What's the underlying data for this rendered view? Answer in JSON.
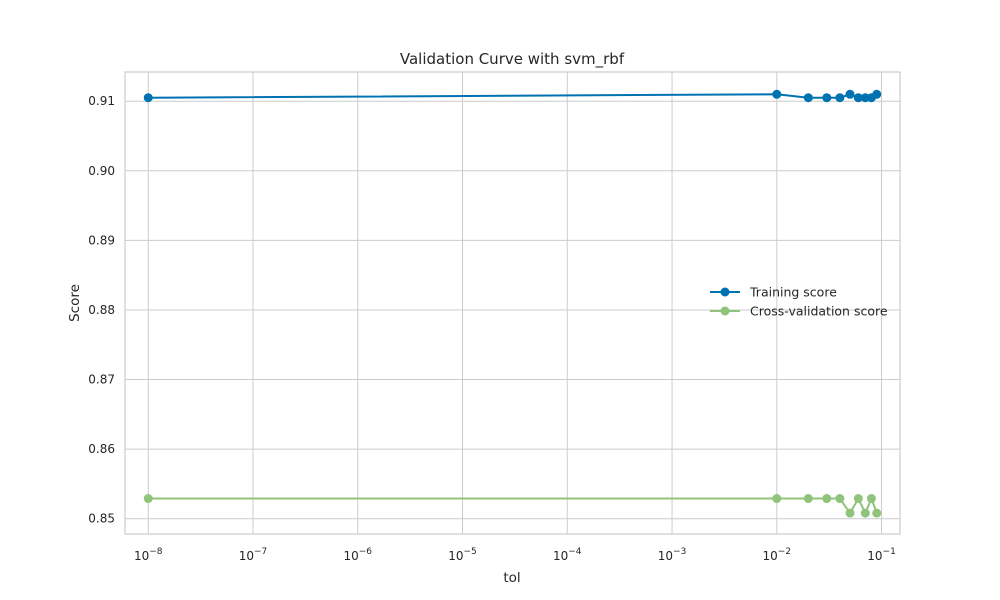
{
  "chart_data": {
    "type": "line",
    "title": "Validation Curve with svm_rbf",
    "xlabel": "tol",
    "ylabel": "Score",
    "xscale": "log",
    "xlim": [
      6e-09,
      0.15
    ],
    "ylim": [
      0.8478,
      0.9142
    ],
    "grid": true,
    "legend_position": "center-right",
    "x": [
      1e-08,
      0.01,
      0.02,
      0.03,
      0.04,
      0.05,
      0.06,
      0.07,
      0.08,
      0.09
    ],
    "x_ticks": [
      {
        "base": "10",
        "exp": "−8"
      },
      {
        "base": "10",
        "exp": "−7"
      },
      {
        "base": "10",
        "exp": "−6"
      },
      {
        "base": "10",
        "exp": "−5"
      },
      {
        "base": "10",
        "exp": "−4"
      },
      {
        "base": "10",
        "exp": "−3"
      },
      {
        "base": "10",
        "exp": "−2"
      },
      {
        "base": "10",
        "exp": "−1"
      }
    ],
    "y_ticks": [
      "0.85",
      "0.86",
      "0.87",
      "0.88",
      "0.89",
      "0.90",
      "0.91"
    ],
    "series": [
      {
        "name": "Training score",
        "color": "#0072b2",
        "values": [
          0.9105,
          0.911,
          0.9105,
          0.9105,
          0.9105,
          0.911,
          0.9105,
          0.9105,
          0.9105,
          0.911
        ]
      },
      {
        "name": "Cross-validation score",
        "color": "#8fc47a",
        "values": [
          0.8529,
          0.8529,
          0.8529,
          0.8529,
          0.8529,
          0.8508,
          0.8529,
          0.8508,
          0.8529,
          0.8508
        ]
      }
    ]
  }
}
